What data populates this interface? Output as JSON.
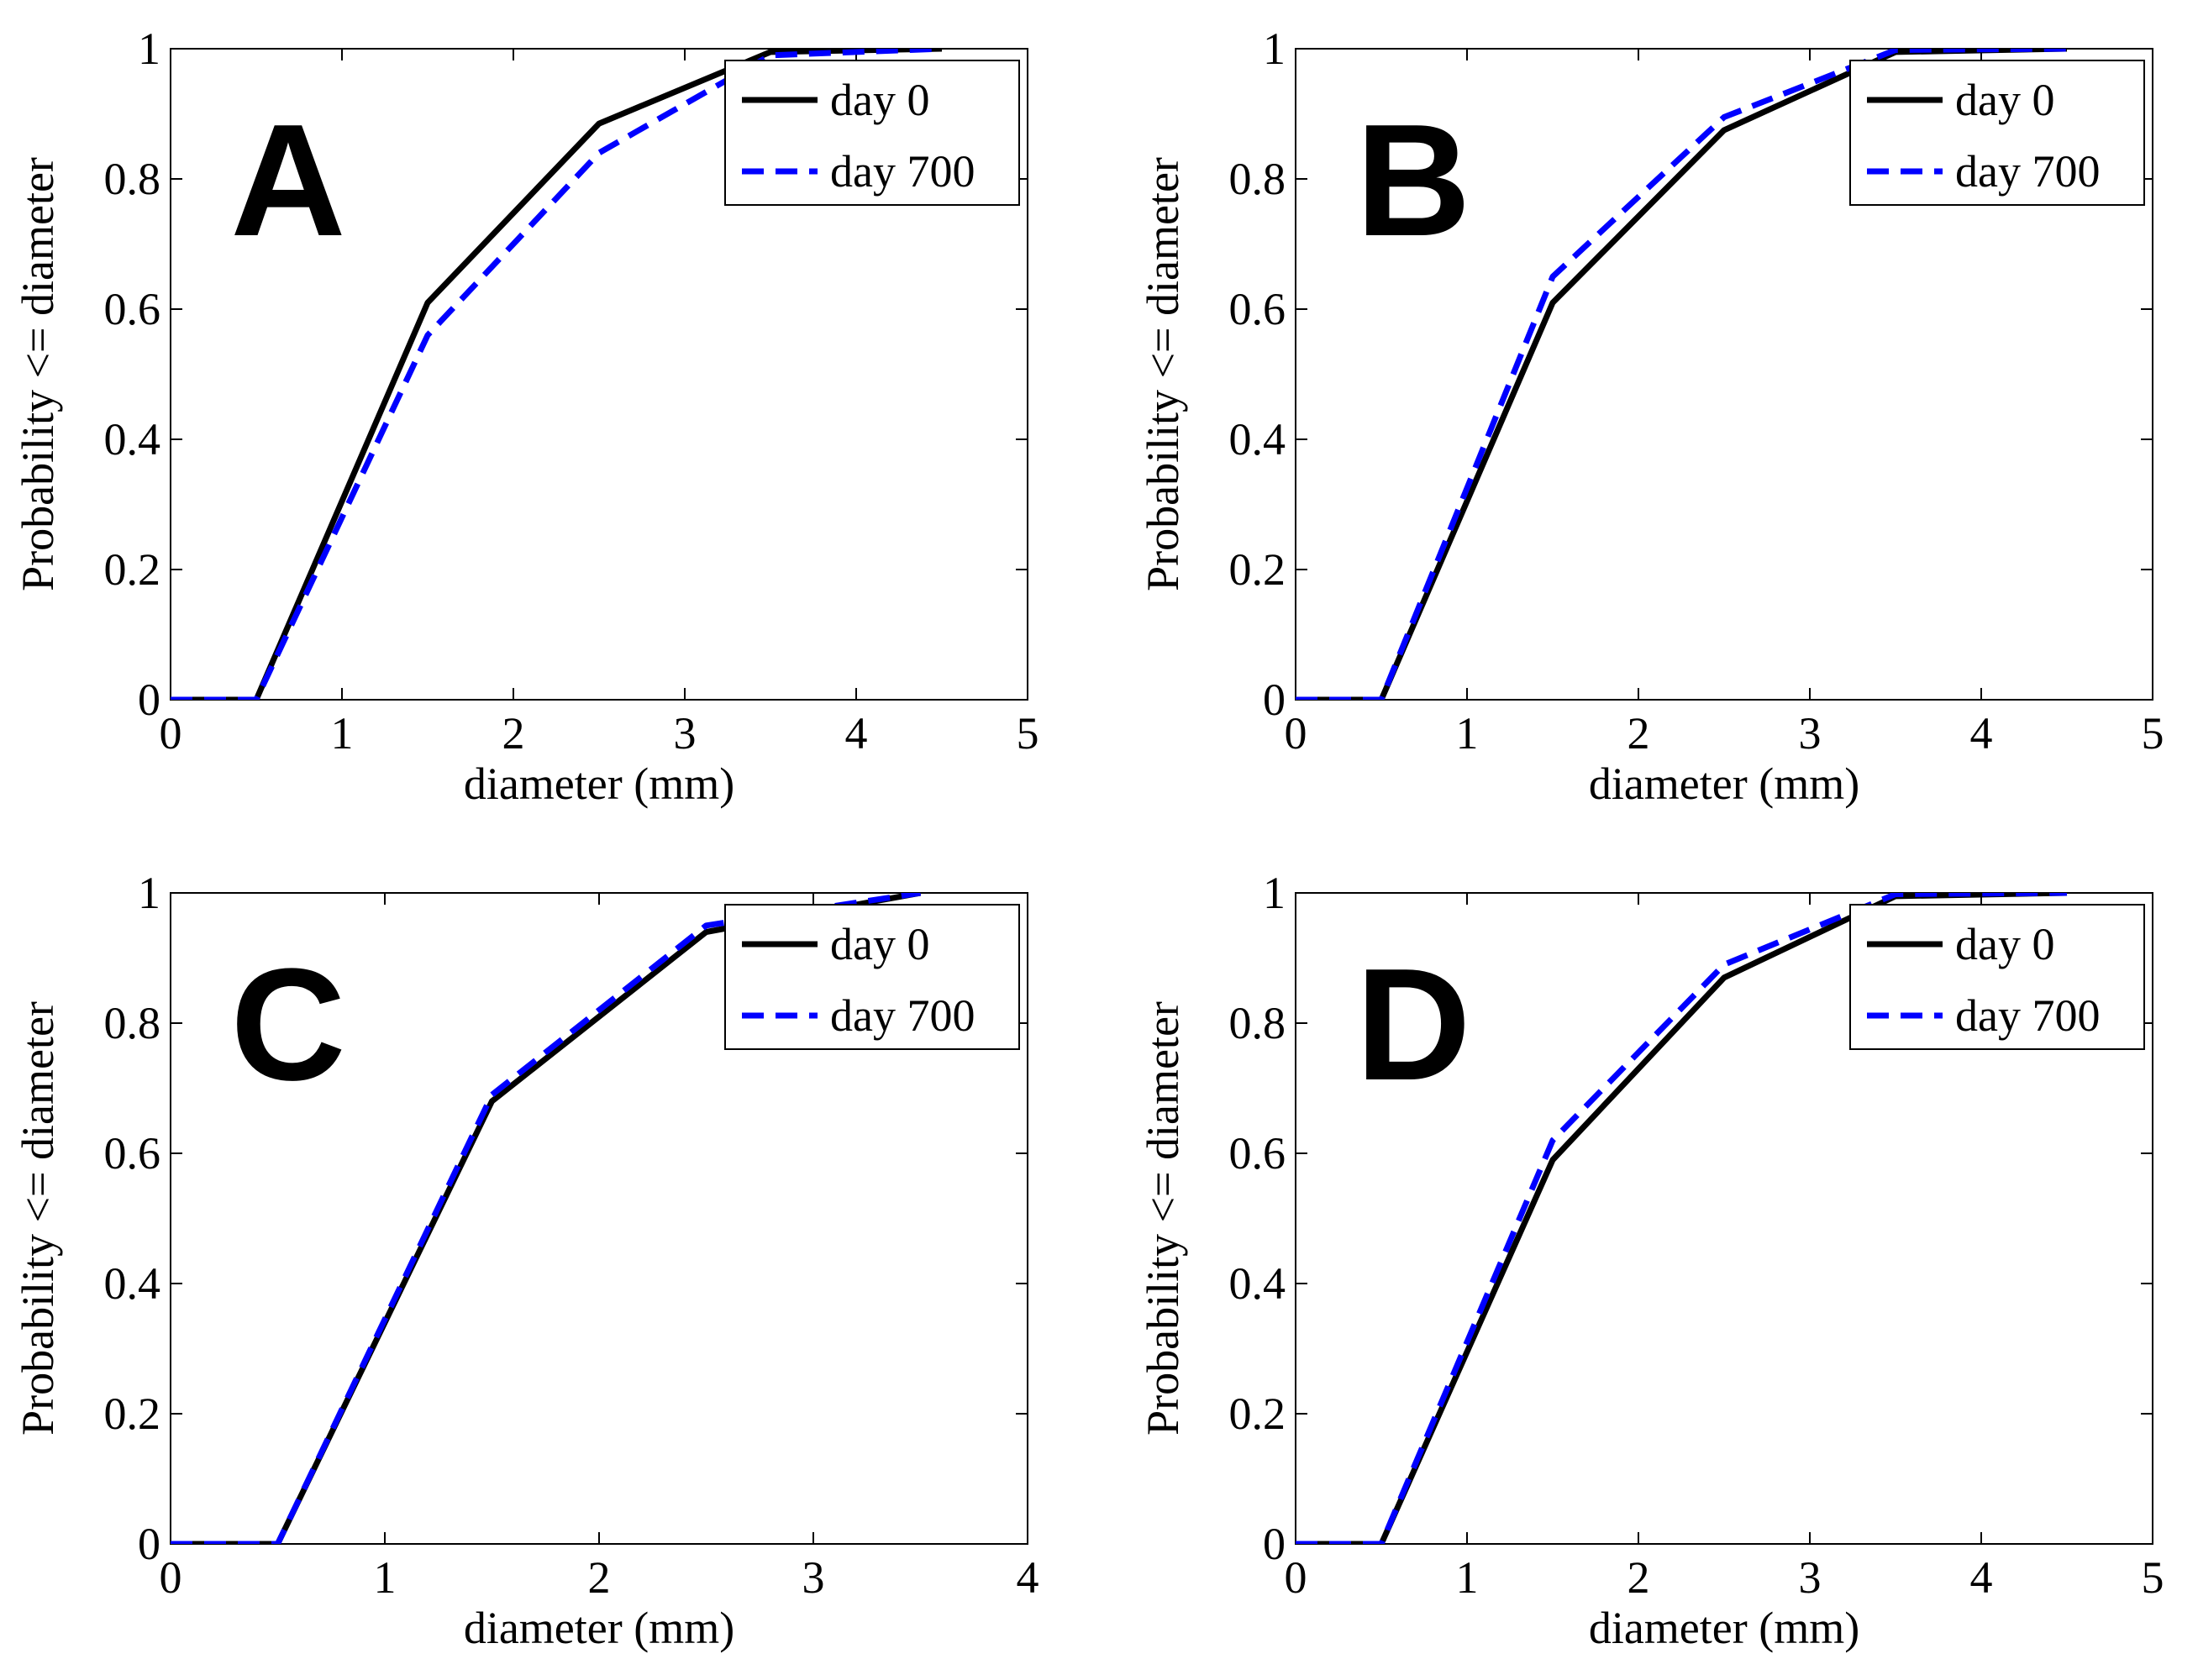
{
  "colors": {
    "day0": "#000000",
    "day700": "#0000ff"
  },
  "chart_data": [
    {
      "type": "line",
      "panel_label": "A",
      "xlabel": "diameter (mm)",
      "ylabel": "Probability <= diameter",
      "xlim": [
        0,
        5
      ],
      "ylim": [
        0,
        1
      ],
      "xticks": [
        0,
        1,
        2,
        3,
        4,
        5
      ],
      "yticks": [
        0,
        0.2,
        0.4,
        0.6,
        0.8,
        1
      ],
      "xtick_labels": [
        "0",
        "1",
        "2",
        "3",
        "4",
        "5"
      ],
      "ytick_labels": [
        "0",
        "0.2",
        "0.4",
        "0.6",
        "0.8",
        "1"
      ],
      "legend_position": "top-right",
      "series": [
        {
          "name": "day 0",
          "style": "solid",
          "x": [
            0,
            0.5,
            1.5,
            2.5,
            3.5,
            4.5
          ],
          "y": [
            0,
            0,
            0.61,
            0.885,
            0.995,
            1.0
          ]
        },
        {
          "name": "day 700",
          "style": "dashed",
          "x": [
            0,
            0.5,
            1.5,
            2.5,
            3.5,
            4.5
          ],
          "y": [
            0,
            0,
            0.56,
            0.84,
            0.99,
            1.0
          ]
        }
      ]
    },
    {
      "type": "line",
      "panel_label": "B",
      "xlabel": "diameter (mm)",
      "ylabel": "Probability <= diameter",
      "xlim": [
        0,
        5
      ],
      "ylim": [
        0,
        1
      ],
      "xticks": [
        0,
        1,
        2,
        3,
        4,
        5
      ],
      "yticks": [
        0,
        0.2,
        0.4,
        0.6,
        0.8,
        1
      ],
      "xtick_labels": [
        "0",
        "1",
        "2",
        "3",
        "4",
        "5"
      ],
      "ytick_labels": [
        "0",
        "0.2",
        "0.4",
        "0.6",
        "0.8",
        "1"
      ],
      "legend_position": "top-right",
      "series": [
        {
          "name": "day 0",
          "style": "solid",
          "x": [
            0,
            0.5,
            1.5,
            2.5,
            3.5,
            4.5
          ],
          "y": [
            0,
            0,
            0.61,
            0.875,
            0.995,
            1.0
          ]
        },
        {
          "name": "day 700",
          "style": "dashed",
          "x": [
            0,
            0.5,
            1.5,
            2.5,
            3.5,
            4.5
          ],
          "y": [
            0,
            0,
            0.65,
            0.895,
            0.998,
            1.0
          ]
        }
      ]
    },
    {
      "type": "line",
      "panel_label": "C",
      "xlabel": "diameter (mm)",
      "ylabel": "Probability <= diameter",
      "xlim": [
        0,
        4
      ],
      "ylim": [
        0,
        1
      ],
      "xticks": [
        0,
        1,
        2,
        3,
        4
      ],
      "yticks": [
        0,
        0.2,
        0.4,
        0.6,
        0.8,
        1
      ],
      "xtick_labels": [
        "0",
        "1",
        "2",
        "3",
        "4"
      ],
      "ytick_labels": [
        "0",
        "0.2",
        "0.4",
        "0.6",
        "0.8",
        "1"
      ],
      "legend_position": "top-right",
      "series": [
        {
          "name": "day 0",
          "style": "solid",
          "x": [
            0,
            0.5,
            1.5,
            2.5,
            3.5
          ],
          "y": [
            0,
            0,
            0.68,
            0.94,
            1.0
          ]
        },
        {
          "name": "day 700",
          "style": "dashed",
          "x": [
            0,
            0.5,
            1.5,
            2.5,
            3.5
          ],
          "y": [
            0,
            0,
            0.69,
            0.95,
            1.0
          ]
        }
      ]
    },
    {
      "type": "line",
      "panel_label": "D",
      "xlabel": "diameter (mm)",
      "ylabel": "Probability <= diameter",
      "xlim": [
        0,
        5
      ],
      "ylim": [
        0,
        1
      ],
      "xticks": [
        0,
        1,
        2,
        3,
        4,
        5
      ],
      "yticks": [
        0,
        0.2,
        0.4,
        0.6,
        0.8,
        1
      ],
      "xtick_labels": [
        "0",
        "1",
        "2",
        "3",
        "4",
        "5"
      ],
      "ytick_labels": [
        "0",
        "0.2",
        "0.4",
        "0.6",
        "0.8",
        "1"
      ],
      "legend_position": "top-right",
      "series": [
        {
          "name": "day 0",
          "style": "solid",
          "x": [
            0,
            0.5,
            1.5,
            2.5,
            3.5,
            4.5
          ],
          "y": [
            0,
            0,
            0.59,
            0.87,
            0.995,
            1.0
          ]
        },
        {
          "name": "day 700",
          "style": "dashed",
          "x": [
            0,
            0.5,
            1.5,
            2.5,
            3.5,
            4.5
          ],
          "y": [
            0,
            0,
            0.62,
            0.89,
            0.998,
            1.0
          ]
        }
      ]
    }
  ]
}
